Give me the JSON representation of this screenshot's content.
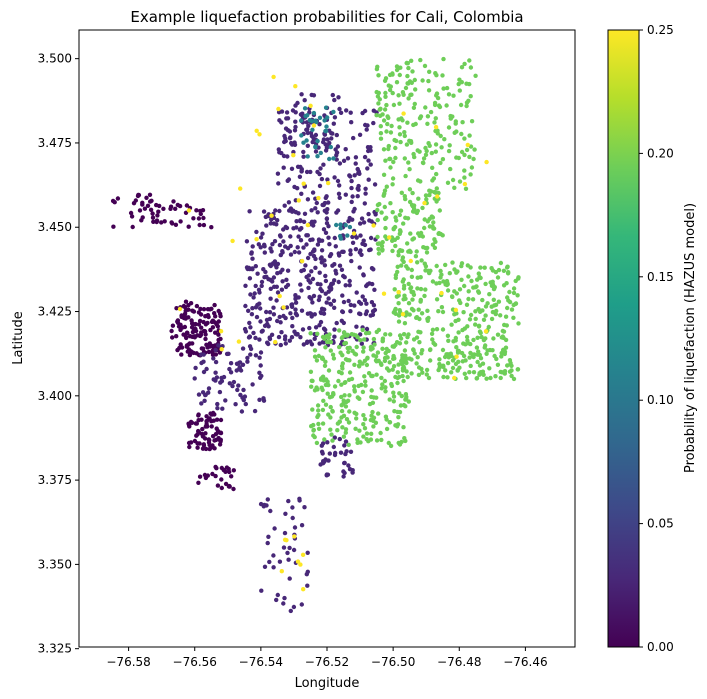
{
  "chart_data": {
    "type": "scatter",
    "title": "Example liquefaction probabilities for Cali, Colombia",
    "xlabel": "Longitude",
    "ylabel": "Latitude",
    "xlim": [
      -76.595,
      -76.445
    ],
    "ylim": [
      3.3255,
      3.5085
    ],
    "xticks": [
      -76.58,
      -76.56,
      -76.54,
      -76.52,
      -76.5,
      -76.48,
      -76.46
    ],
    "xtick_labels": [
      "−76.58",
      "−76.56",
      "−76.54",
      "−76.52",
      "−76.50",
      "−76.48",
      "−76.46"
    ],
    "yticks": [
      3.325,
      3.35,
      3.375,
      3.4,
      3.425,
      3.45,
      3.475,
      3.5
    ],
    "ytick_labels": [
      "3.325",
      "3.350",
      "3.375",
      "3.400",
      "3.425",
      "3.450",
      "3.475",
      "3.500"
    ],
    "colorbar": {
      "label": "Probability of liquefaction (HAZUS model)",
      "colormap": "viridis",
      "range": [
        0,
        0.25
      ],
      "ticks": [
        0.0,
        0.05,
        0.1,
        0.15,
        0.2,
        0.25
      ],
      "tick_labels": [
        "0.00",
        "0.05",
        "0.10",
        "0.15",
        "0.20",
        "0.25"
      ],
      "stops": [
        "#440154",
        "#482878",
        "#3e4989",
        "#31688e",
        "#26828e",
        "#1f9e89",
        "#35b779",
        "#6ece58",
        "#b5de2b",
        "#fde725"
      ]
    },
    "grid": false,
    "clusters": [
      {
        "name": "far-west strip",
        "lon": [
          -76.585,
          -76.565
        ],
        "lat": [
          3.45,
          3.46
        ],
        "value": 0.0,
        "n": 35
      },
      {
        "name": "west strip",
        "lon": [
          -76.575,
          -76.555
        ],
        "lat": [
          3.45,
          3.457
        ],
        "value": 0.0,
        "n": 25
      },
      {
        "name": "west low cluster",
        "lon": [
          -76.567,
          -76.552
        ],
        "lat": [
          3.412,
          3.428
        ],
        "value": 0.0,
        "n": 140
      },
      {
        "name": "southwest cluster",
        "lon": [
          -76.562,
          -76.552
        ],
        "lat": [
          3.384,
          3.395
        ],
        "value": 0.0,
        "n": 70
      },
      {
        "name": "south-west small cluster",
        "lon": [
          -76.559,
          -76.548
        ],
        "lat": [
          3.372,
          3.379
        ],
        "value": 0.0,
        "n": 25
      },
      {
        "name": "central-west sparse",
        "lon": [
          -76.56,
          -76.538
        ],
        "lat": [
          3.395,
          3.415
        ],
        "value": 0.02,
        "n": 80
      },
      {
        "name": "central main cluster",
        "lon": [
          -76.545,
          -76.505
        ],
        "lat": [
          3.415,
          3.455
        ],
        "value": 0.03,
        "n": 420
      },
      {
        "name": "north central",
        "lon": [
          -76.535,
          -76.505
        ],
        "lat": [
          3.455,
          3.485
        ],
        "value": 0.03,
        "n": 160
      },
      {
        "name": "north cluster",
        "lon": [
          -76.535,
          -76.515
        ],
        "lat": [
          3.475,
          3.49
        ],
        "value": 0.03,
        "n": 40
      },
      {
        "name": "teal north",
        "lon": [
          -76.528,
          -76.518
        ],
        "lat": [
          3.469,
          3.486
        ],
        "value": 0.11,
        "n": 30
      },
      {
        "name": "teal mid",
        "lon": [
          -76.518,
          -76.512
        ],
        "lat": [
          3.446,
          3.452
        ],
        "value": 0.11,
        "n": 8
      },
      {
        "name": "south central purple",
        "lon": [
          -76.522,
          -76.512
        ],
        "lat": [
          3.376,
          3.388
        ],
        "value": 0.03,
        "n": 35
      },
      {
        "name": "south tail",
        "lon": [
          -76.54,
          -76.525
        ],
        "lat": [
          3.335,
          3.37
        ],
        "value": 0.03,
        "n": 45
      },
      {
        "name": "green north",
        "lon": [
          -76.505,
          -76.475
        ],
        "lat": [
          3.46,
          3.5
        ],
        "value": 0.2,
        "n": 220
      },
      {
        "name": "green east",
        "lon": [
          -76.5,
          -76.462
        ],
        "lat": [
          3.405,
          3.44
        ],
        "value": 0.2,
        "n": 380
      },
      {
        "name": "green south-central",
        "lon": [
          -76.525,
          -76.495
        ],
        "lat": [
          3.385,
          3.42
        ],
        "value": 0.2,
        "n": 300
      },
      {
        "name": "green mid",
        "lon": [
          -76.505,
          -76.485
        ],
        "lat": [
          3.44,
          3.46
        ],
        "value": 0.2,
        "n": 110
      },
      {
        "name": "yellow scattered",
        "lon": [
          -76.565,
          -76.47
        ],
        "lat": [
          3.405,
          3.495
        ],
        "value": 0.25,
        "n": 45
      },
      {
        "name": "yellow south",
        "lon": [
          -76.535,
          -76.525
        ],
        "lat": [
          3.34,
          3.365
        ],
        "value": 0.25,
        "n": 8
      }
    ]
  }
}
